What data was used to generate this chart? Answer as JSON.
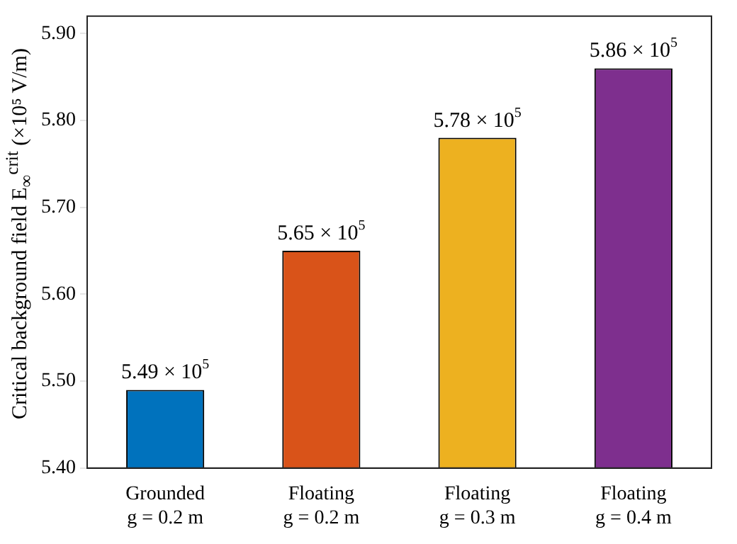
{
  "chart_data": {
    "type": "bar",
    "ylabel": "Critical background field E$_{∞}$$^{crit}$ (×10⁵ V/m)",
    "categories": [
      "Grounded\ng = 0.2 m",
      "Floating\ng = 0.2 m",
      "Floating\ng = 0.3 m",
      "Floating\ng = 0.4 m"
    ],
    "values": [
      5.49,
      5.65,
      5.78,
      5.86
    ],
    "colors": [
      "#0072bd",
      "#d95319",
      "#edb120",
      "#7e2f8e"
    ],
    "annotations": [
      {
        "text": "5.49 × 10$^{5}$",
        "x": "Grounded\ng = 0.2 m",
        "y": 5.49
      },
      {
        "text": "5.65 × 10$^{5}$",
        "x": "Floating\ng = 0.2 m",
        "y": 5.65
      },
      {
        "text": "5.78 × 10$^{5}$",
        "x": "Floating\ng = 0.3 m",
        "y": 5.78
      },
      {
        "text": "5.86 × 10$^{5}$",
        "x": "Floating\ng = 0.4 m",
        "y": 5.86
      }
    ],
    "ylim": [
      5.4,
      5.92
    ],
    "yticks": [
      {
        "value": 5.4,
        "label": "5.40"
      },
      {
        "value": 5.5,
        "label": "5.50"
      },
      {
        "value": 5.6,
        "label": "5.60"
      },
      {
        "value": 5.7,
        "label": "5.70"
      },
      {
        "value": 5.8,
        "label": "5.80"
      },
      {
        "value": 5.9,
        "label": "5.90"
      }
    ],
    "grid": false,
    "legend": false
  }
}
